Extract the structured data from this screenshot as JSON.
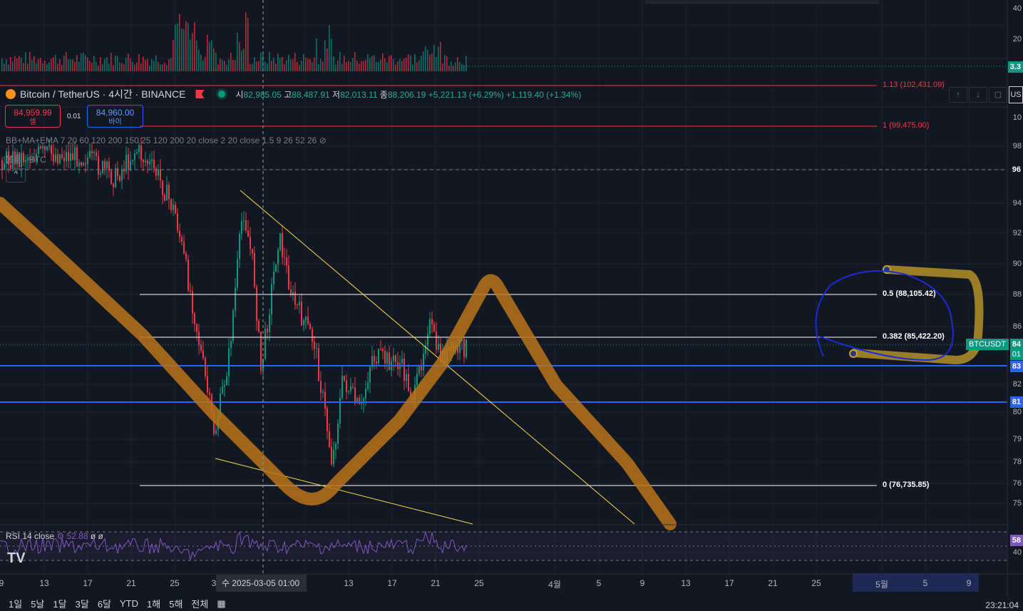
{
  "header": {
    "symbol": "Bitcoin / TetherUS · 4시간 · BINANCE",
    "ohlc": [
      {
        "k": "시",
        "v": "82,985.05"
      },
      {
        "k": "고",
        "v": "88,487.91"
      },
      {
        "k": "저",
        "v": "82,013.11"
      },
      {
        "k": "종",
        "v": "88,206.19"
      }
    ],
    "change": "+5,221.13 (+6.29%)",
    "change2": "+1,119.40 (+1.34%)"
  },
  "trade": {
    "sell_price": "84,959.99",
    "sell_label": "셀",
    "spread": "0.01",
    "buy_price": "84,960.00",
    "buy_label": "바이"
  },
  "indicators": {
    "main": "BB+MA+EMA 7 20 60 120 200 150 25 120 200 20 close 2 20 close 1.5 9 26 52 26",
    "volume": "볼륨 · BTC",
    "collapse": "^"
  },
  "rsi": {
    "label": "RSI 14 close",
    "value": "52.88",
    "extra": "ø ø"
  },
  "fib": {
    "f113": "1.13 (102,431.09)",
    "f1": "1 (99,475.00)",
    "f05": "0.5 (88,105.42)",
    "f0382": "0.382 (85,422.20)",
    "f0": "0 (76,735.85)"
  },
  "symbol_tag": "BTCUSDT",
  "price_axis": [
    "40",
    "20",
    "10",
    "98",
    "96",
    "94",
    "92",
    "90",
    "88",
    "86",
    "84",
    "82",
    "80",
    "79",
    "78",
    "76",
    "75",
    "40"
  ],
  "price_tags": {
    "vol": "3.3",
    "current": "84",
    "current2": "01",
    "blue1": "83",
    "blue2": "81",
    "level96": "96",
    "rsi": "58"
  },
  "time_axis": {
    "labels": [
      "9",
      "13",
      "17",
      "21",
      "25",
      "3",
      "13",
      "17",
      "21",
      "25",
      "4월",
      "5",
      "9",
      "13",
      "17",
      "21",
      "25",
      "5월",
      "5",
      "9"
    ],
    "crosshair": "수 2025-03-05   01:00"
  },
  "us_btn": "US",
  "bottom": {
    "ranges": [
      "1일",
      "5날",
      "1달",
      "3달",
      "6달",
      "YTD",
      "1해",
      "5해",
      "전체"
    ],
    "clock": "23:21:04"
  },
  "colors": {
    "bg": "#131722",
    "up": "#089981",
    "down": "#f23645",
    "fib": "#ffffff",
    "blue": "#2962ff",
    "brush": "#b8741a"
  },
  "chart_data": {
    "type": "candlestick",
    "note_series": [
      {
        "name": "support_1",
        "values": [
          83
        ]
      },
      {
        "name": "support_2",
        "values": [
          81
        ]
      }
    ]
  }
}
